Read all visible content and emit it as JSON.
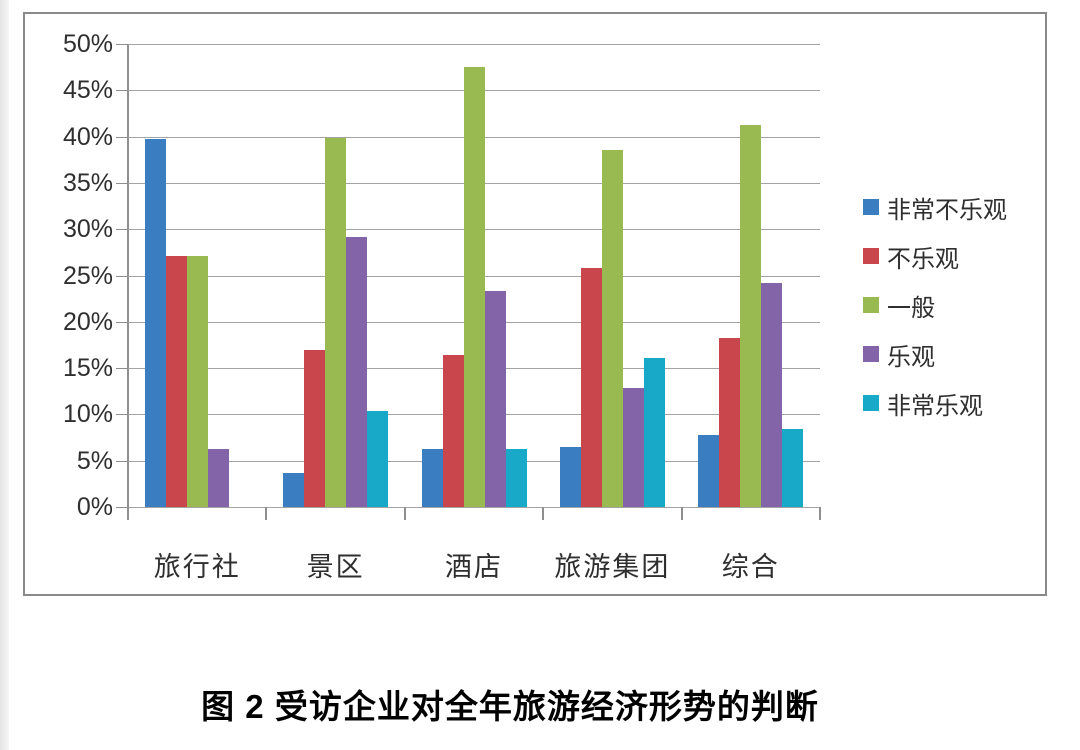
{
  "caption": "图 2  受访企业对全年旅游经济形势的判断",
  "chart_data": {
    "type": "bar",
    "title": "图 2 受访企业对全年旅游经济形势的判断",
    "categories": [
      "旅行社",
      "景区",
      "酒店",
      "旅游集团",
      "综合"
    ],
    "series": [
      {
        "name": "非常不乐观",
        "color": "#3a7ec1",
        "values": [
          39.7,
          3.7,
          6.3,
          6.5,
          7.8
        ]
      },
      {
        "name": "不乐观",
        "color": "#c9474c",
        "values": [
          27.1,
          17.0,
          16.4,
          25.8,
          18.2
        ]
      },
      {
        "name": "一般",
        "color": "#99ba50",
        "values": [
          27.1,
          39.8,
          47.5,
          38.6,
          41.3
        ]
      },
      {
        "name": "乐观",
        "color": "#8464a8",
        "values": [
          6.3,
          29.2,
          23.3,
          12.9,
          24.2
        ]
      },
      {
        "name": "非常乐观",
        "color": "#17a9c7",
        "values": [
          0,
          10.4,
          6.3,
          16.1,
          8.4
        ]
      }
    ],
    "xlabel": "",
    "ylabel": "",
    "ylim": [
      0,
      50
    ],
    "ytick_step": 5,
    "yticks": [
      "0%",
      "5%",
      "10%",
      "15%",
      "20%",
      "25%",
      "30%",
      "35%",
      "40%",
      "45%",
      "50%"
    ],
    "grid": true,
    "legend_position": "right",
    "colors": {
      "gridline": "#a3a3a3",
      "axis": "#8f8f8f",
      "frame_border": "#898989",
      "label_text": "#2f2f2f"
    }
  }
}
